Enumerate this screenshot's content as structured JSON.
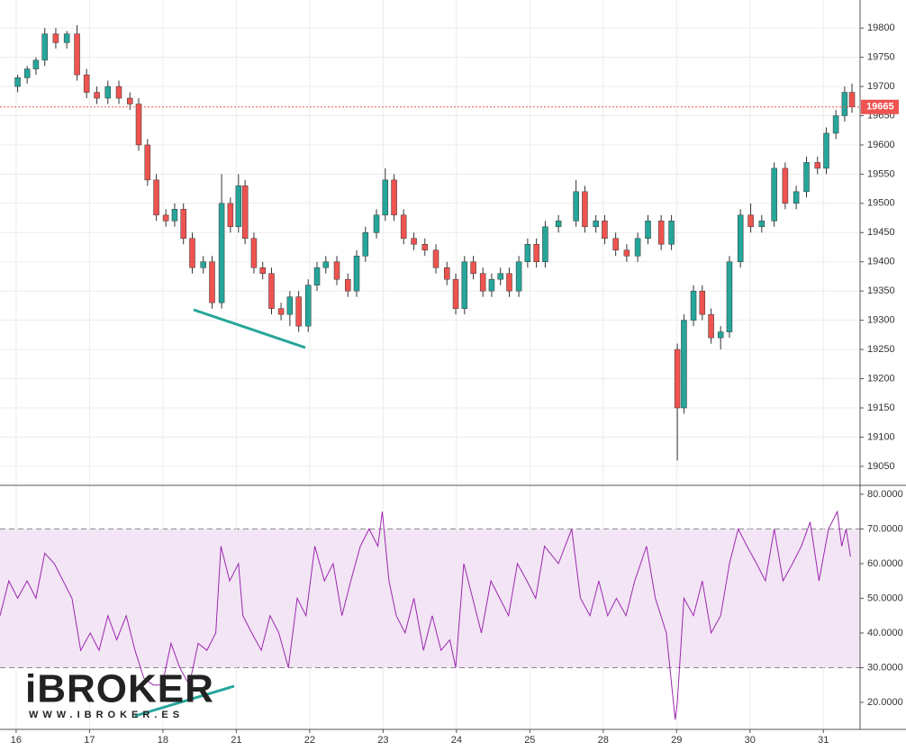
{
  "chart_data": [
    {
      "type": "candlestick",
      "x": [
        0.02,
        0.15,
        0.27,
        0.39,
        0.54,
        0.69,
        0.83,
        0.96,
        1.1,
        1.25,
        1.4,
        1.55,
        1.67,
        1.79,
        1.91,
        2.04,
        2.16,
        2.28,
        2.4,
        2.55,
        2.67,
        2.8,
        2.92,
        3.03,
        3.12,
        3.24,
        3.36,
        3.48,
        3.61,
        3.73,
        3.85,
        3.98,
        4.1,
        4.22,
        4.37,
        4.52,
        4.64,
        4.76,
        4.91,
        5.03,
        5.15,
        5.28,
        5.42,
        5.57,
        5.72,
        5.87,
        5.99,
        6.11,
        6.23,
        6.36,
        6.48,
        6.6,
        6.72,
        6.85,
        6.97,
        7.09,
        7.21,
        7.39,
        7.63,
        7.75,
        7.9,
        8.02,
        8.17,
        8.32,
        8.47,
        8.61,
        8.79,
        8.93,
        9.01,
        9.1,
        9.23,
        9.35,
        9.47,
        9.6,
        9.72,
        9.87,
        10.01,
        10.16,
        10.33,
        10.48,
        10.63,
        10.77,
        10.92,
        11.04,
        11.17,
        11.29,
        11.39
      ],
      "open": [
        19700,
        19715,
        19730,
        19745,
        19790,
        19775,
        19790,
        19720,
        19690,
        19680,
        19700,
        19680,
        19670,
        19600,
        19540,
        19480,
        19470,
        19490,
        19440,
        19390,
        19400,
        19330,
        19500,
        19460,
        19530,
        19440,
        19390,
        19380,
        19320,
        19310,
        19340,
        19290,
        19360,
        19390,
        19400,
        19370,
        19350,
        19410,
        19450,
        19480,
        19540,
        19480,
        19440,
        19430,
        19420,
        19390,
        19370,
        19320,
        19400,
        19380,
        19350,
        19370,
        19380,
        19350,
        19400,
        19430,
        19400,
        19460,
        19470,
        19520,
        19460,
        19470,
        19440,
        19420,
        19410,
        19440,
        19470,
        19430,
        19250,
        19150,
        19300,
        19350,
        19310,
        19270,
        19280,
        19400,
        19480,
        19460,
        19470,
        19560,
        19500,
        19520,
        19570,
        19560,
        19620,
        19650,
        19690
      ],
      "high": [
        19720,
        19735,
        19750,
        19800,
        19800,
        19795,
        19805,
        19730,
        19700,
        19710,
        19710,
        19690,
        19680,
        19610,
        19550,
        19490,
        19500,
        19500,
        19450,
        19410,
        19410,
        19550,
        19510,
        19550,
        19540,
        19450,
        19400,
        19390,
        19330,
        19350,
        19350,
        19370,
        19400,
        19410,
        19410,
        19380,
        19420,
        19460,
        19490,
        19560,
        19550,
        19490,
        19450,
        19440,
        19430,
        19400,
        19380,
        19410,
        19410,
        19390,
        19380,
        19390,
        19390,
        19410,
        19440,
        19440,
        19470,
        19480,
        19540,
        19530,
        19480,
        19480,
        19450,
        19430,
        19450,
        19480,
        19480,
        19480,
        19260,
        19310,
        19360,
        19360,
        19320,
        19290,
        19410,
        19490,
        19500,
        19480,
        19570,
        19570,
        19530,
        19580,
        19580,
        19630,
        19660,
        19700,
        19705
      ],
      "low": [
        19690,
        19705,
        19720,
        19735,
        19765,
        19765,
        19710,
        19680,
        19670,
        19670,
        19670,
        19660,
        19590,
        19530,
        19470,
        19460,
        19460,
        19430,
        19380,
        19380,
        19320,
        19320,
        19450,
        19450,
        19430,
        19380,
        19370,
        19310,
        19300,
        19290,
        19280,
        19280,
        19350,
        19380,
        19360,
        19340,
        19340,
        19400,
        19440,
        19470,
        19470,
        19430,
        19420,
        19410,
        19380,
        19360,
        19310,
        19310,
        19370,
        19340,
        19340,
        19360,
        19340,
        19340,
        19390,
        19390,
        19390,
        19450,
        19460,
        19450,
        19450,
        19430,
        19410,
        19400,
        19400,
        19430,
        19420,
        19420,
        19060,
        19140,
        19290,
        19300,
        19260,
        19250,
        19270,
        19390,
        19450,
        19450,
        19460,
        19490,
        19490,
        19510,
        19550,
        19550,
        19610,
        19640,
        19655
      ],
      "close": [
        19715,
        19730,
        19745,
        19790,
        19775,
        19790,
        19720,
        19690,
        19680,
        19700,
        19680,
        19670,
        19600,
        19540,
        19480,
        19470,
        19490,
        19440,
        19390,
        19400,
        19330,
        19500,
        19460,
        19530,
        19440,
        19390,
        19380,
        19320,
        19310,
        19340,
        19290,
        19360,
        19390,
        19400,
        19370,
        19350,
        19410,
        19450,
        19480,
        19540,
        19480,
        19440,
        19430,
        19420,
        19390,
        19370,
        19320,
        19400,
        19380,
        19350,
        19370,
        19380,
        19350,
        19400,
        19430,
        19400,
        19460,
        19470,
        19520,
        19460,
        19470,
        19440,
        19420,
        19410,
        19440,
        19470,
        19430,
        19470,
        19150,
        19300,
        19350,
        19310,
        19270,
        19280,
        19400,
        19480,
        19460,
        19470,
        19560,
        19500,
        19520,
        19570,
        19560,
        19620,
        19650,
        19690,
        19665
      ],
      "up_color": "#26a69a",
      "down_color": "#ef5350",
      "wick_color": "#333333",
      "xlim": [
        -0.22,
        11.5
      ],
      "ylim": [
        19019,
        19848
      ],
      "yticks": [
        19050,
        19100,
        19150,
        19200,
        19250,
        19300,
        19350,
        19400,
        19450,
        19500,
        19550,
        19600,
        19650,
        19700,
        19750,
        19800
      ],
      "last_price": 19665,
      "last_price_color": "#ef5350",
      "grid": true
    },
    {
      "type": "line",
      "x": [
        -0.22,
        -0.1,
        0.02,
        0.15,
        0.27,
        0.39,
        0.52,
        0.64,
        0.76,
        0.88,
        1.01,
        1.13,
        1.25,
        1.37,
        1.5,
        1.62,
        1.74,
        1.87,
        1.99,
        2.11,
        2.23,
        2.36,
        2.48,
        2.6,
        2.72,
        2.79,
        2.91,
        3.03,
        3.09,
        3.21,
        3.34,
        3.46,
        3.58,
        3.71,
        3.83,
        3.95,
        4.07,
        4.2,
        4.32,
        4.44,
        4.56,
        4.69,
        4.81,
        4.93,
        4.99,
        5.08,
        5.18,
        5.3,
        5.42,
        5.55,
        5.67,
        5.79,
        5.91,
        5.99,
        6.1,
        6.22,
        6.34,
        6.47,
        6.59,
        6.71,
        6.83,
        6.96,
        7.08,
        7.2,
        7.39,
        7.57,
        7.69,
        7.82,
        7.94,
        8.06,
        8.18,
        8.31,
        8.43,
        8.59,
        8.71,
        8.86,
        8.98,
        9.01,
        9.1,
        9.23,
        9.35,
        9.47,
        9.6,
        9.72,
        9.84,
        9.96,
        10.09,
        10.21,
        10.33,
        10.45,
        10.58,
        10.7,
        10.82,
        10.94,
        11.07,
        11.19,
        11.25,
        11.31,
        11.37
      ],
      "values": [
        45,
        55,
        50,
        55,
        50,
        63,
        60,
        55,
        50,
        35,
        40,
        35,
        45,
        38,
        45,
        35,
        27,
        25,
        25,
        37,
        30,
        25,
        37,
        35,
        40,
        65,
        55,
        60,
        45,
        40,
        35,
        45,
        40,
        30,
        50,
        45,
        65,
        55,
        60,
        45,
        55,
        65,
        70,
        65,
        75,
        55,
        45,
        40,
        50,
        35,
        45,
        35,
        38,
        30,
        60,
        50,
        40,
        55,
        50,
        45,
        60,
        55,
        50,
        65,
        60,
        70,
        50,
        45,
        55,
        45,
        50,
        45,
        55,
        65,
        50,
        40,
        15,
        20,
        50,
        45,
        55,
        40,
        45,
        60,
        70,
        65,
        60,
        55,
        70,
        55,
        60,
        65,
        72,
        55,
        70,
        75,
        65,
        70,
        62
      ],
      "color": "#9c27b0",
      "band": [
        30,
        70
      ],
      "band_color": "#f3e5f5",
      "xlim": [
        -0.22,
        11.5
      ],
      "ylim": [
        12.2,
        82.3
      ],
      "yticks": [
        {
          "value": 20,
          "label": "20.0000"
        },
        {
          "value": 30,
          "label": "30.0000"
        },
        {
          "value": 40,
          "label": "40.0000"
        },
        {
          "value": 50,
          "label": "50.0000"
        },
        {
          "value": 60,
          "label": "60.0000"
        },
        {
          "value": 70,
          "label": "70.0000"
        },
        {
          "value": 80,
          "label": "80.0000"
        }
      ],
      "xticks": [
        {
          "value": 0,
          "label": "16"
        },
        {
          "value": 1,
          "label": "17"
        },
        {
          "value": 2,
          "label": "18"
        },
        {
          "value": 3,
          "label": "21"
        },
        {
          "value": 4,
          "label": "22"
        },
        {
          "value": 5,
          "label": "23"
        },
        {
          "value": 6,
          "label": "24"
        },
        {
          "value": 7,
          "label": "25"
        },
        {
          "value": 8,
          "label": "28"
        },
        {
          "value": 9,
          "label": "29"
        },
        {
          "value": 10,
          "label": "30"
        },
        {
          "value": 11,
          "label": "31"
        }
      ],
      "grid": true
    }
  ],
  "logo": {
    "brand": "iBROKER",
    "url": "WWW.IBROKER.ES"
  }
}
